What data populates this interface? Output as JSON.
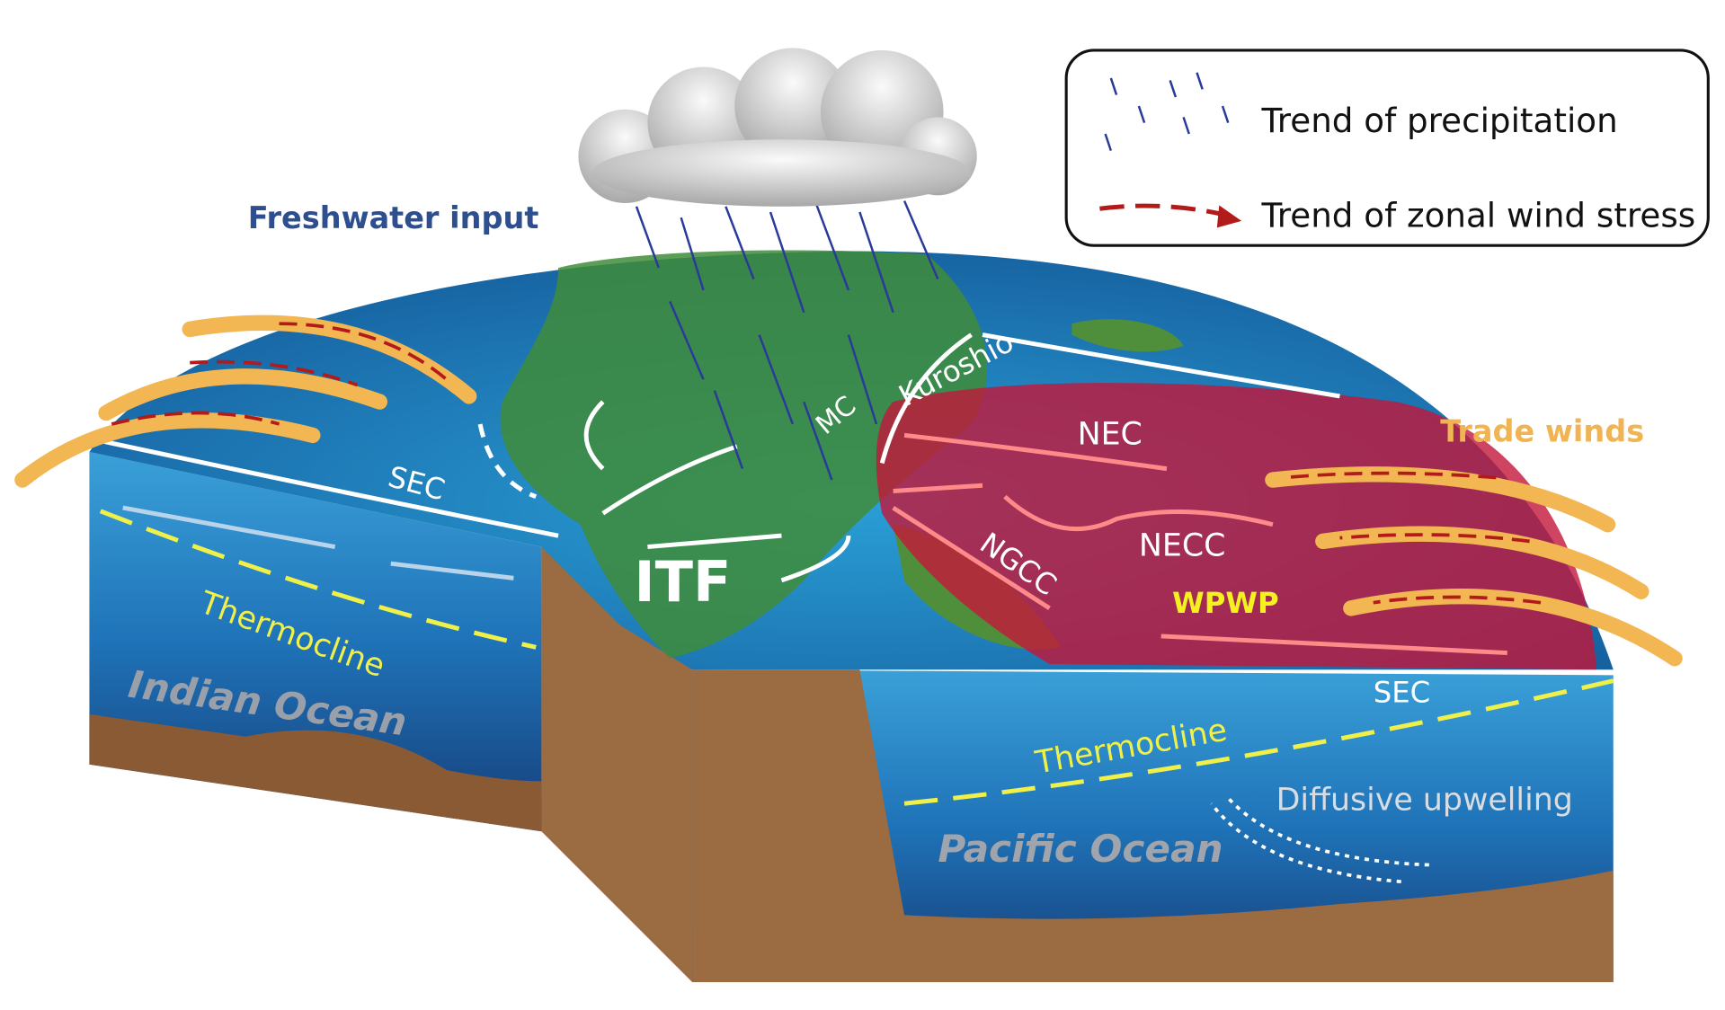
{
  "legend": {
    "items": [
      "Trend of precipitation",
      "Trend of zonal wind stress"
    ]
  },
  "labels": {
    "freshwater": "Freshwater input",
    "trade_winds": "Trade winds",
    "sec_indian": "SEC",
    "itf": "ITF",
    "mc": "MC",
    "kuroshio": "Kuroshio",
    "nec": "NEC",
    "necc": "NECC",
    "ngcc": "NGCC",
    "wpwp": "WPWP",
    "sec_pacific": "SEC",
    "thermocline_indian": "Thermocline",
    "thermocline_pacific": "Thermocline",
    "indian_ocean": "Indian Ocean",
    "pacific_ocean": "Pacific Ocean",
    "upwelling": "Diffusive upwelling"
  }
}
